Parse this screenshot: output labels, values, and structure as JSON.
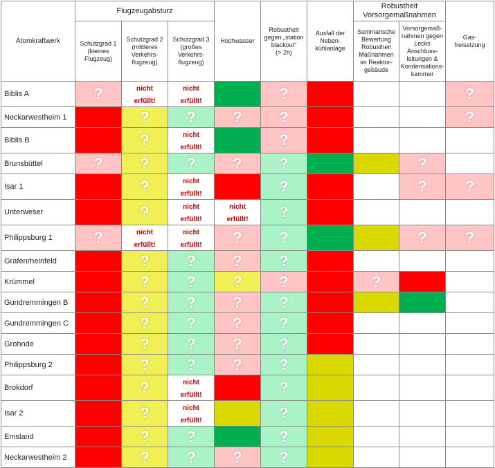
{
  "table": {
    "plant_header": "Atomkraftwerk",
    "groups": [
      {
        "label": "Flugzeugabsturz",
        "span": 3
      },
      {
        "label": "Robustheit\nVorsorgemaßnahmen",
        "span": 2
      }
    ],
    "columns": [
      {
        "label": "Schutzgrad 1\n(kleines\nFlugzeug)",
        "group": 0
      },
      {
        "label": "Schutzgrad 2\n(mittleres\nVerkehrs-\nflugzeug)",
        "group": 0
      },
      {
        "label": "Schutzgrad 3\n(großes\nVerkehrs-\nflugzeug)",
        "group": 0
      },
      {
        "label": "Hochwasser"
      },
      {
        "label": "Robustheit\ngegen „station\nblackout“\n(> 2h)"
      },
      {
        "label": "Ausfall der\nNeben-\nkühlanlage"
      },
      {
        "label": "Summarische\nBewertung\nRobustheit\nMaßnahmen\nim Reaktor-\ngebäude",
        "group": 1
      },
      {
        "label": "Vorsorgemaß-\nnahmen gegen\nLecks\nAnschluss-\nleitungen &\nKondensations-\nkammer",
        "group": 1
      },
      {
        "label": "Gas-\nfreisetzung"
      }
    ],
    "rows": [
      {
        "name": "Biblis A",
        "cells": [
          {
            "status": "pink",
            "text": "?"
          },
          {
            "status": "white",
            "text": "nicht\nerfüllt!"
          },
          {
            "status": "white",
            "text": "nicht\nerfüllt!"
          },
          {
            "status": "green"
          },
          {
            "status": "pink",
            "text": "?"
          },
          {
            "status": "red"
          },
          {
            "status": "white"
          },
          {
            "status": "white"
          },
          {
            "status": "pink",
            "text": "?"
          }
        ]
      },
      {
        "name": "Neckarwestheim 1",
        "cells": [
          {
            "status": "red"
          },
          {
            "status": "lightyellow",
            "text": "?"
          },
          {
            "status": "mint",
            "text": "?"
          },
          {
            "status": "pink",
            "text": "?"
          },
          {
            "status": "pink",
            "text": "?"
          },
          {
            "status": "red"
          },
          {
            "status": "white"
          },
          {
            "status": "white"
          },
          {
            "status": "pink",
            "text": "?"
          }
        ]
      },
      {
        "name": "Biblis B",
        "cells": [
          {
            "status": "red"
          },
          {
            "status": "lightyellow",
            "text": "?"
          },
          {
            "status": "white",
            "text": "nicht\nerfüllt!"
          },
          {
            "status": "green"
          },
          {
            "status": "pink",
            "text": "?"
          },
          {
            "status": "red"
          },
          {
            "status": "white"
          },
          {
            "status": "white"
          },
          {
            "status": "white"
          }
        ]
      },
      {
        "name": "Brunsbüttel",
        "cells": [
          {
            "status": "pink",
            "text": "?"
          },
          {
            "status": "lightyellow",
            "text": "?"
          },
          {
            "status": "mint",
            "text": "?"
          },
          {
            "status": "pink",
            "text": "?"
          },
          {
            "status": "mint",
            "text": "?"
          },
          {
            "status": "green"
          },
          {
            "status": "yellow"
          },
          {
            "status": "pink",
            "text": "?"
          },
          {
            "status": "white"
          }
        ]
      },
      {
        "name": "Isar 1",
        "cells": [
          {
            "status": "red"
          },
          {
            "status": "lightyellow",
            "text": "?"
          },
          {
            "status": "white",
            "text": "nicht\nerfüllt!"
          },
          {
            "status": "red"
          },
          {
            "status": "mint",
            "text": "?"
          },
          {
            "status": "red"
          },
          {
            "status": "white"
          },
          {
            "status": "pink",
            "text": "?"
          },
          {
            "status": "pink",
            "text": "?"
          }
        ]
      },
      {
        "name": "Unterweser",
        "cells": [
          {
            "status": "red"
          },
          {
            "status": "lightyellow",
            "text": "?"
          },
          {
            "status": "white",
            "text": "nicht\nerfüllt!"
          },
          {
            "status": "white",
            "text": "nicht\nerfüllt!"
          },
          {
            "status": "mint",
            "text": "?"
          },
          {
            "status": "red"
          },
          {
            "status": "white"
          },
          {
            "status": "white"
          },
          {
            "status": "white"
          }
        ]
      },
      {
        "name": "Philippsburg 1",
        "cells": [
          {
            "status": "pink",
            "text": "?"
          },
          {
            "status": "white",
            "text": "nicht\nerfüllt!"
          },
          {
            "status": "white",
            "text": "nicht\nerfüllt!"
          },
          {
            "status": "pink",
            "text": "?"
          },
          {
            "status": "mint",
            "text": "?"
          },
          {
            "status": "green"
          },
          {
            "status": "yellow"
          },
          {
            "status": "pink",
            "text": "?"
          },
          {
            "status": "pink",
            "text": "?"
          }
        ]
      },
      {
        "name": "Grafenrheinfeld",
        "cells": [
          {
            "status": "red"
          },
          {
            "status": "lightyellow",
            "text": "?"
          },
          {
            "status": "mint",
            "text": "?"
          },
          {
            "status": "pink",
            "text": "?"
          },
          {
            "status": "mint",
            "text": "?"
          },
          {
            "status": "red"
          },
          {
            "status": "white"
          },
          {
            "status": "white"
          },
          {
            "status": "white"
          }
        ]
      },
      {
        "name": "Krümmel",
        "cells": [
          {
            "status": "red"
          },
          {
            "status": "lightyellow",
            "text": "?"
          },
          {
            "status": "mint",
            "text": "?"
          },
          {
            "status": "lightyellow",
            "text": "?"
          },
          {
            "status": "pink",
            "text": "?"
          },
          {
            "status": "red"
          },
          {
            "status": "pink",
            "text": "?"
          },
          {
            "status": "red"
          },
          {
            "status": "white"
          }
        ]
      },
      {
        "name": "Gundremmingen B",
        "cells": [
          {
            "status": "red"
          },
          {
            "status": "lightyellow",
            "text": "?"
          },
          {
            "status": "mint",
            "text": "?"
          },
          {
            "status": "pink",
            "text": "?"
          },
          {
            "status": "mint",
            "text": "?"
          },
          {
            "status": "red"
          },
          {
            "status": "yellow"
          },
          {
            "status": "green"
          },
          {
            "status": "white"
          }
        ]
      },
      {
        "name": "Gundremmingen C",
        "cells": [
          {
            "status": "red"
          },
          {
            "status": "lightyellow",
            "text": "?"
          },
          {
            "status": "mint",
            "text": "?"
          },
          {
            "status": "pink",
            "text": "?"
          },
          {
            "status": "mint",
            "text": "?"
          },
          {
            "status": "red"
          },
          {
            "status": "white"
          },
          {
            "status": "white"
          },
          {
            "status": "white"
          }
        ]
      },
      {
        "name": "Grohnde",
        "cells": [
          {
            "status": "red"
          },
          {
            "status": "lightyellow",
            "text": "?"
          },
          {
            "status": "mint",
            "text": "?"
          },
          {
            "status": "pink",
            "text": "?"
          },
          {
            "status": "mint",
            "text": "?"
          },
          {
            "status": "red"
          },
          {
            "status": "white"
          },
          {
            "status": "white"
          },
          {
            "status": "white"
          }
        ]
      },
      {
        "name": "Philippsburg 2",
        "cells": [
          {
            "status": "red"
          },
          {
            "status": "lightyellow",
            "text": "?"
          },
          {
            "status": "mint",
            "text": "?"
          },
          {
            "status": "pink",
            "text": "?"
          },
          {
            "status": "mint",
            "text": "?"
          },
          {
            "status": "yellow"
          },
          {
            "status": "white"
          },
          {
            "status": "white"
          },
          {
            "status": "white"
          }
        ]
      },
      {
        "name": "Brokdorf",
        "cells": [
          {
            "status": "red"
          },
          {
            "status": "lightyellow",
            "text": "?"
          },
          {
            "status": "white",
            "text": "nicht\nerfüllt!"
          },
          {
            "status": "red"
          },
          {
            "status": "mint",
            "text": "?"
          },
          {
            "status": "yellow"
          },
          {
            "status": "white"
          },
          {
            "status": "white"
          },
          {
            "status": "white"
          }
        ]
      },
      {
        "name": "Isar 2",
        "cells": [
          {
            "status": "red"
          },
          {
            "status": "lightyellow",
            "text": "?"
          },
          {
            "status": "white",
            "text": "nicht\nerfüllt!"
          },
          {
            "status": "yellow"
          },
          {
            "status": "mint",
            "text": "?"
          },
          {
            "status": "yellow"
          },
          {
            "status": "white"
          },
          {
            "status": "white"
          },
          {
            "status": "white"
          }
        ]
      },
      {
        "name": "Emsland",
        "cells": [
          {
            "status": "red"
          },
          {
            "status": "lightyellow",
            "text": "?"
          },
          {
            "status": "mint",
            "text": "?"
          },
          {
            "status": "green"
          },
          {
            "status": "mint",
            "text": "?"
          },
          {
            "status": "yellow"
          },
          {
            "status": "white"
          },
          {
            "status": "white"
          },
          {
            "status": "white"
          }
        ]
      },
      {
        "name": "Neckarwestheim 2",
        "cells": [
          {
            "status": "red"
          },
          {
            "status": "lightyellow",
            "text": "?"
          },
          {
            "status": "mint",
            "text": "?"
          },
          {
            "status": "pink",
            "text": "?"
          },
          {
            "status": "mint",
            "text": "?"
          },
          {
            "status": "yellow"
          },
          {
            "status": "white"
          },
          {
            "status": "white"
          },
          {
            "status": "white"
          }
        ]
      }
    ]
  }
}
